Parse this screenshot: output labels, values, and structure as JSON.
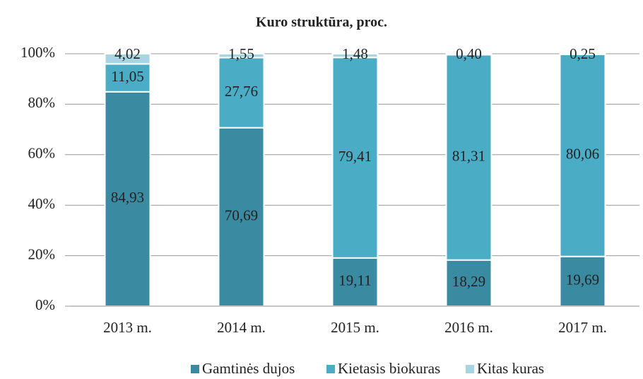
{
  "chart_data": {
    "type": "stacked_bar",
    "title": "Kuro struktūra, proc.",
    "categories": [
      "2013 m.",
      "2014 m.",
      "2015 m.",
      "2016 m.",
      "2017 m."
    ],
    "series": [
      {
        "name": "Gamtinės dujos",
        "color": "#3a8ba1",
        "values": [
          84.93,
          70.69,
          19.11,
          18.29,
          19.69
        ],
        "value_labels": [
          "84,93",
          "70,69",
          "19,11",
          "18,29",
          "19,69"
        ]
      },
      {
        "name": "Kietasis biokuras",
        "color": "#4bacc6",
        "values": [
          11.05,
          27.76,
          79.41,
          81.31,
          80.06
        ],
        "value_labels": [
          "11,05",
          "27,76",
          "79,41",
          "81,31",
          "80,06"
        ]
      },
      {
        "name": "Kitas kuras",
        "color": "#a9d4e2",
        "values": [
          4.02,
          1.55,
          1.48,
          0.4,
          0.25
        ],
        "value_labels": [
          "4,02",
          "1,55",
          "1,48",
          "0,40",
          "0,25"
        ]
      }
    ],
    "ylim": [
      0,
      100
    ],
    "yticks": [
      {
        "value": 0,
        "label": "0%"
      },
      {
        "value": 20,
        "label": "20%"
      },
      {
        "value": 40,
        "label": "40%"
      },
      {
        "value": 60,
        "label": "60%"
      },
      {
        "value": 80,
        "label": "80%"
      },
      {
        "value": 100,
        "label": "100%"
      }
    ],
    "grid": true,
    "legend": "bottom"
  }
}
